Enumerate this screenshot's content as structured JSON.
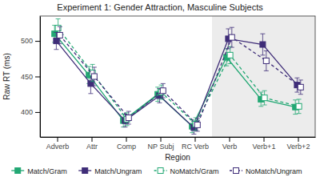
{
  "chart_data": {
    "type": "line",
    "title": "Experiment 1: Gender Attraction, Masculine Subjects",
    "x_label": "Region",
    "y_label": "Raw RT (ms)",
    "categories": [
      "Adverb",
      "Attr",
      "Comp",
      "NP Subj",
      "RC Verb",
      "Verb",
      "Verb+1",
      "Verb+2"
    ],
    "series": [
      {
        "name": "Match/Gram",
        "color": "#23a874",
        "marker": "square",
        "line_style": "solid",
        "values": [
          510,
          452,
          388,
          425,
          380,
          477,
          418,
          407
        ],
        "errors": [
          12,
          12,
          9,
          10,
          9,
          12,
          10,
          10
        ]
      },
      {
        "name": "Match/Ungram",
        "color": "#3f2d78",
        "marker": "square",
        "line_style": "solid",
        "values": [
          500,
          440,
          388,
          423,
          378,
          503,
          495,
          438
        ],
        "errors": [
          12,
          14,
          9,
          10,
          9,
          14,
          15,
          10
        ]
      },
      {
        "name": "NoMatch/Gram",
        "color": "#23a874",
        "marker": "open-square",
        "line_style": "dashed",
        "values": [
          518,
          455,
          390,
          428,
          383,
          480,
          420,
          408
        ],
        "errors": [
          13,
          12,
          9,
          10,
          9,
          12,
          10,
          10
        ]
      },
      {
        "name": "NoMatch/Ungram",
        "color": "#3f2d78",
        "marker": "open-square",
        "line_style": "dashed",
        "values": [
          508,
          450,
          392,
          430,
          382,
          505,
          472,
          435
        ],
        "errors": [
          12,
          13,
          9,
          10,
          9,
          14,
          14,
          10
        ]
      }
    ],
    "ylim": [
      365,
      535
    ],
    "yticks": [
      400,
      450,
      500
    ],
    "grid": false,
    "legend": "bottom"
  }
}
